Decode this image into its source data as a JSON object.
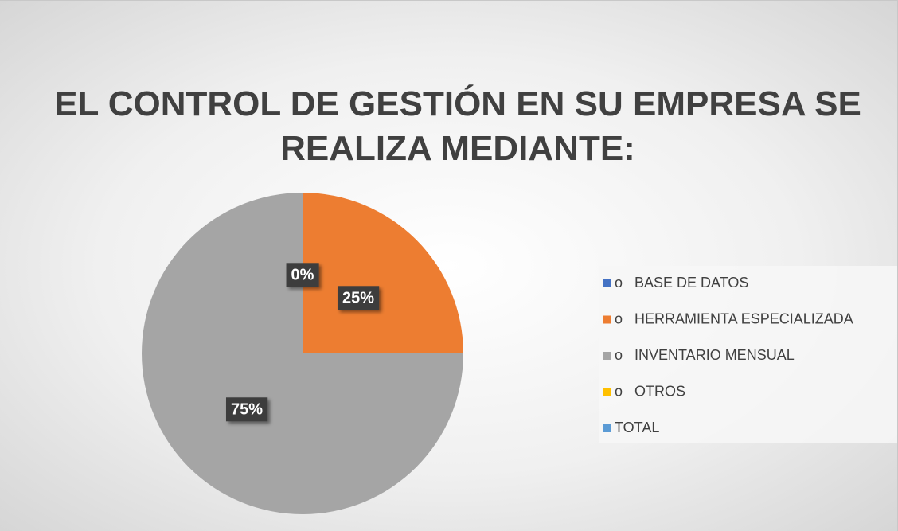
{
  "chart_data": {
    "type": "pie",
    "title": "EL CONTROL DE GESTIÓN EN SU EMPRESA SE REALIZA MEDIANTE:",
    "categories": [
      "o   BASE DE DATOS",
      "o   HERRAMIENTA ESPECIALIZADA",
      "o   INVENTARIO MENSUAL",
      "o   OTROS",
      "TOTAL"
    ],
    "values": [
      0,
      25,
      75,
      0,
      0
    ],
    "value_labels": [
      "0%",
      "25%",
      "75%",
      null,
      null
    ],
    "colors": [
      "#4472c4",
      "#ed7d31",
      "#a5a5a5",
      "#ffc000",
      "#5b9bd5"
    ],
    "legend": "right"
  }
}
